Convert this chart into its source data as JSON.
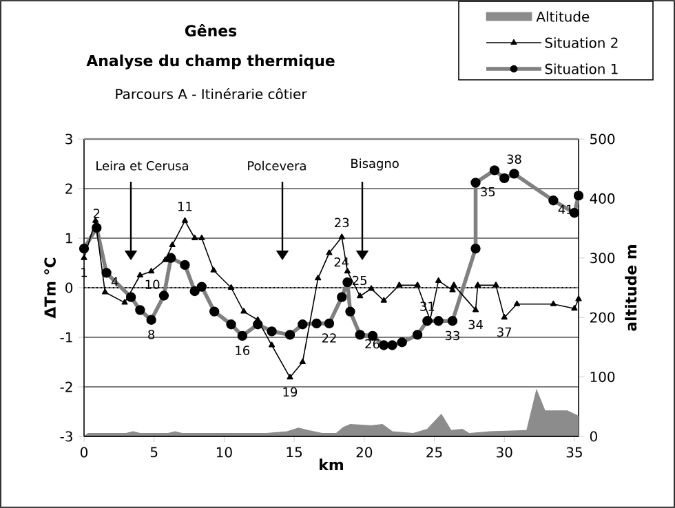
{
  "chart_data": {
    "type": "line",
    "title": "Gênes",
    "subtitle": "Analyse du champ thermique",
    "xlabel": "km",
    "ylabel": "ΔTm °C",
    "y2label": "altitude m",
    "xlim": [
      0,
      35.3
    ],
    "xticks": [
      0,
      5,
      10,
      15,
      20,
      25,
      30,
      35
    ],
    "ylim": [
      -3,
      3
    ],
    "yticks": [
      -3,
      -2,
      -1,
      0,
      1,
      2,
      3
    ],
    "y2lim": [
      0,
      500
    ],
    "y2ticks": [
      0,
      100,
      200,
      300,
      400,
      500
    ],
    "grid": "y",
    "legend": "top right",
    "ref_lines": [
      {
        "axis": "y",
        "value": 0,
        "line_style": "dotted"
      }
    ],
    "series": [
      {
        "name": "Altitude",
        "type": "area",
        "axis": "y2",
        "color": "#8c8c8c",
        "x": [
          0,
          0.3,
          3,
          3.5,
          4,
          6,
          6.5,
          7,
          13,
          14.5,
          15.3,
          16,
          17,
          18,
          18.5,
          19,
          20.5,
          21.3,
          22,
          23.5,
          24.5,
          25.5,
          26.2,
          27,
          27.5,
          29,
          31.6,
          32.3,
          32.9,
          34.5,
          35.3
        ],
        "values": [
          0,
          5,
          5,
          8,
          5,
          5,
          8,
          5,
          5,
          8,
          14,
          10,
          5,
          5,
          15,
          20,
          18,
          20,
          8,
          5,
          12,
          37,
          10,
          12,
          5,
          8,
          10,
          78,
          43,
          43,
          34
        ]
      },
      {
        "name": "Situation 2",
        "color": "#000000",
        "marker": "triangle",
        "x": [
          0,
          0.82,
          1.5,
          2.9,
          4.0,
          4.8,
          5.8,
          6.3,
          7.2,
          7.9,
          8.4,
          9.25,
          10.5,
          11.4,
          12.4,
          13.4,
          14.7,
          15.6,
          16.7,
          17.5,
          18.4,
          18.8,
          19.7,
          20.5,
          21.4,
          22.5,
          23.8,
          24.7,
          25.3,
          26.3,
          26.4,
          27.95,
          28.1,
          29.4,
          30.0,
          30.9,
          33.5,
          35.0,
          35.3
        ],
        "values": [
          0.6,
          1.35,
          -0.09,
          -0.3,
          0.25,
          0.33,
          0.56,
          0.86,
          1.35,
          1.0,
          1.0,
          0.35,
          0.0,
          -0.48,
          -0.65,
          -1.16,
          -1.81,
          -1.5,
          0.19,
          0.7,
          1.02,
          0.33,
          -0.17,
          -0.02,
          -0.26,
          0.05,
          0.05,
          -0.65,
          0.14,
          -0.05,
          0.05,
          -0.45,
          0.05,
          0.05,
          -0.6,
          -0.33,
          -0.33,
          -0.42,
          -0.23
        ]
      },
      {
        "name": "Situation 1",
        "color": "#808080",
        "marker": "circle",
        "x": [
          0,
          0.9,
          1.6,
          3.35,
          4.0,
          4.8,
          5.7,
          6.2,
          7.2,
          7.9,
          8.4,
          9.3,
          10.5,
          11.3,
          12.4,
          13.4,
          14.7,
          15.6,
          16.6,
          17.5,
          18.4,
          18.8,
          19.0,
          19.7,
          20.6,
          21.4,
          22.0,
          22.7,
          23.8,
          24.5,
          25.3,
          26.3,
          27.95,
          27.95,
          29.3,
          30.0,
          30.7,
          33.5,
          35.0,
          35.3
        ],
        "values": [
          0.79,
          1.21,
          0.3,
          -0.19,
          -0.45,
          -0.65,
          -0.16,
          0.6,
          0.46,
          -0.07,
          0.02,
          -0.48,
          -0.74,
          -0.97,
          -0.74,
          -0.88,
          -0.95,
          -0.74,
          -0.72,
          -0.72,
          -0.19,
          0.11,
          -0.48,
          -0.95,
          -0.97,
          -1.16,
          -1.16,
          -1.1,
          -0.95,
          -0.67,
          -0.67,
          -0.67,
          0.79,
          2.12,
          2.37,
          2.21,
          2.3,
          1.76,
          1.51,
          1.86
        ]
      }
    ],
    "annotations": [
      "Parcours A - Itinérarie côtier",
      "Leira et Cerusa",
      "Polcevera",
      "Bisagno",
      {
        "text": "1",
        "x": 0,
        "y": 0.6
      },
      {
        "text": "2",
        "x": 0.9,
        "y": 1.21
      },
      {
        "text": "4",
        "x": 1.6,
        "y": 0.3
      },
      {
        "text": "8",
        "x": 4.8,
        "y": -0.65
      },
      {
        "text": "10",
        "x": 4.0,
        "y": 0.25
      },
      {
        "text": "11",
        "x": 7.2,
        "y": 1.35
      },
      {
        "text": "16",
        "x": 11.3,
        "y": -0.97
      },
      {
        "text": "19",
        "x": 14.7,
        "y": -1.81
      },
      {
        "text": "22",
        "x": 17.5,
        "y": -0.72
      },
      {
        "text": "23",
        "x": 18.4,
        "y": 1.02
      },
      {
        "text": "24",
        "x": 17.5,
        "y": 0.7
      },
      {
        "text": "25",
        "x": 18.8,
        "y": 0.33
      },
      {
        "text": "26",
        "x": 19.7,
        "y": -0.95
      },
      {
        "text": "31",
        "x": 24.5,
        "y": -0.67
      },
      {
        "text": "33",
        "x": 26.3,
        "y": -0.67
      },
      {
        "text": "34",
        "x": 27.95,
        "y": -0.45
      },
      {
        "text": "35",
        "x": 27.95,
        "y": 2.12
      },
      {
        "text": "37",
        "x": 30.0,
        "y": -0.6
      },
      {
        "text": "38",
        "x": 30.7,
        "y": 2.3
      },
      {
        "text": "41",
        "x": 33.5,
        "y": 1.76
      }
    ]
  }
}
